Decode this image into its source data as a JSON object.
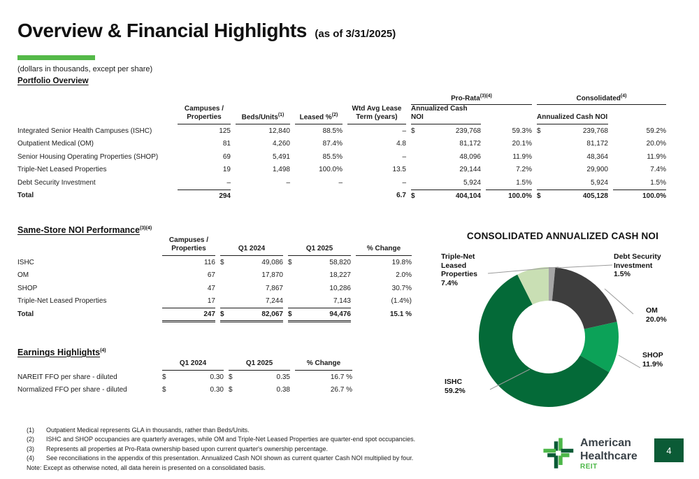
{
  "slide": {
    "title": "Overview & Financial Highlights",
    "title_suffix": "(as of 3/31/2025)",
    "units_note": "(dollars in thousands, except per share)",
    "page_number": "4"
  },
  "portfolio": {
    "heading": "Portfolio Overview",
    "groups": {
      "pro_rata": "Pro-Rata",
      "pro_rata_sup": "(3)(4)",
      "consolidated": "Consolidated",
      "consolidated_sup": "(4)"
    },
    "headers": {
      "campuses_l1": "Campuses /",
      "campuses_l2": "Properties",
      "beds": "Beds/Units",
      "beds_sup": "(1)",
      "leased": "Leased %",
      "leased_sup": "(2)",
      "term_l1": "Wtd Avg Lease",
      "term_l2": "Term (years)",
      "noi": "Annualized Cash NOI"
    },
    "rows": [
      {
        "label": "Integrated Senior Health Campuses (ISHC)",
        "campuses": "125",
        "beds": "12,840",
        "leased": "88.5%",
        "term": "–",
        "prd": "$",
        "prnoi": "239,768",
        "prpct": "59.3%",
        "cod": "$",
        "conoi": "239,768",
        "copct": "59.2%"
      },
      {
        "label": "Outpatient Medical (OM)",
        "campuses": "81",
        "beds": "4,260",
        "leased": "87.4%",
        "term": "4.8",
        "prd": "",
        "prnoi": "81,172",
        "prpct": "20.1%",
        "cod": "",
        "conoi": "81,172",
        "copct": "20.0%"
      },
      {
        "label": "Senior Housing Operating Properties (SHOP)",
        "campuses": "69",
        "beds": "5,491",
        "leased": "85.5%",
        "term": "–",
        "prd": "",
        "prnoi": "48,096",
        "prpct": "11.9%",
        "cod": "",
        "conoi": "48,364",
        "copct": "11.9%"
      },
      {
        "label": "Triple-Net Leased Properties",
        "campuses": "19",
        "beds": "1,498",
        "leased": "100.0%",
        "term": "13.5",
        "prd": "",
        "prnoi": "29,144",
        "prpct": "7.2%",
        "cod": "",
        "conoi": "29,900",
        "copct": "7.4%"
      },
      {
        "label": "Debt Security Investment",
        "campuses": "–",
        "beds": "–",
        "leased": "–",
        "term": "–",
        "prd": "",
        "prnoi": "5,924",
        "prpct": "1.5%",
        "cod": "",
        "conoi": "5,924",
        "copct": "1.5%"
      },
      {
        "label": "Total",
        "campuses": "294",
        "beds": "",
        "leased": "",
        "term": "6.7",
        "prd": "$",
        "prnoi": "404,104",
        "prpct": "100.0%",
        "cod": "$",
        "conoi": "405,128",
        "copct": "100.0%"
      }
    ]
  },
  "same_store": {
    "heading": "Same-Store NOI Performance",
    "heading_sup": "(3)(4)",
    "headers": {
      "campuses_l1": "Campuses /",
      "campuses_l2": "Properties",
      "q1_2024": "Q1 2024",
      "q1_2025": "Q1 2025",
      "change": "% Change"
    },
    "rows": [
      {
        "label": "ISHC",
        "campuses": "116",
        "d24": "$",
        "q24": "49,086",
        "d25": "$",
        "q25": "58,820",
        "chg": "19.8%"
      },
      {
        "label": "OM",
        "campuses": "67",
        "d24": "",
        "q24": "17,870",
        "d25": "",
        "q25": "18,227",
        "chg": "2.0%"
      },
      {
        "label": "SHOP",
        "campuses": "47",
        "d24": "",
        "q24": "7,867",
        "d25": "",
        "q25": "10,286",
        "chg": "30.7%"
      },
      {
        "label": "Triple-Net Leased Properties",
        "campuses": "17",
        "d24": "",
        "q24": "7,244",
        "d25": "",
        "q25": "7,143",
        "chg": "(1.4%)"
      },
      {
        "label": "Total",
        "campuses": "247",
        "d24": "$",
        "q24": "82,067",
        "d25": "$",
        "q25": "94,476",
        "chg": "15.1 %"
      }
    ]
  },
  "earnings": {
    "heading": "Earnings Highlights",
    "heading_sup": "(4)",
    "headers": {
      "q1_2024": "Q1 2024",
      "q1_2025": "Q1 2025",
      "change": "% Change"
    },
    "rows": [
      {
        "label": "NAREIT FFO per share - diluted",
        "d24": "$",
        "q24": "0.30",
        "d25": "$",
        "q25": "0.35",
        "chg": "16.7 %"
      },
      {
        "label": "Normalized FFO per share - diluted",
        "d24": "$",
        "q24": "0.30",
        "d25": "$",
        "q25": "0.38",
        "chg": "26.7 %"
      }
    ]
  },
  "chart_data": {
    "type": "pie",
    "subtype": "donut",
    "title": "CONSOLIDATED ANNUALIZED CASH NOI",
    "start_angle_deg": 0,
    "direction": "clockwise",
    "slices": [
      {
        "label": "Debt Security Investment",
        "value": 1.5,
        "color": "#A6A6A6"
      },
      {
        "label": "OM",
        "value": 20.0,
        "color": "#3E3E3E"
      },
      {
        "label": "SHOP",
        "value": 11.9,
        "color": "#0CA258"
      },
      {
        "label": "ISHC",
        "value": 59.2,
        "color": "#046A38"
      },
      {
        "label": "Triple-Net Leased Properties",
        "value": 7.4,
        "color": "#C9DFB4"
      }
    ],
    "callouts": {
      "tnl": {
        "l1": "Triple-Net",
        "l2": "Leased",
        "l3": "Properties",
        "pct": "7.4%"
      },
      "debt": {
        "l1": "Debt Security",
        "l2": "Investment",
        "pct": "1.5%"
      },
      "om": {
        "l1": "OM",
        "pct": "20.0%"
      },
      "shop": {
        "l1": "SHOP",
        "pct": "11.9%"
      },
      "ishc": {
        "l1": "ISHC",
        "pct": "59.2%"
      }
    }
  },
  "footnotes": {
    "items": [
      {
        "num": "(1)",
        "text": "Outpatient Medical represents GLA in thousands, rather than Beds/Units."
      },
      {
        "num": "(2)",
        "text": "ISHC and SHOP occupancies are quarterly averages, while OM and Triple-Net Leased Properties are quarter-end spot occupancies."
      },
      {
        "num": "(3)",
        "text": "Represents all properties at Pro-Rata ownership based upon current quarter's ownership percentage."
      },
      {
        "num": "(4)",
        "text": "See reconciliations in the appendix of this presentation. Annualized Cash NOI shown as current quarter Cash NOI multiplied by four."
      }
    ],
    "note": "Note: Except as otherwise noted, all data herein is presented on a consolidated basis."
  },
  "logo": {
    "line1": "American",
    "line2": "Healthcare",
    "line3": "REIT"
  },
  "colors": {
    "accent_green": "#54B948",
    "logo_dark_green": "#0B5B36",
    "logo_bright_green": "#4CB748"
  }
}
